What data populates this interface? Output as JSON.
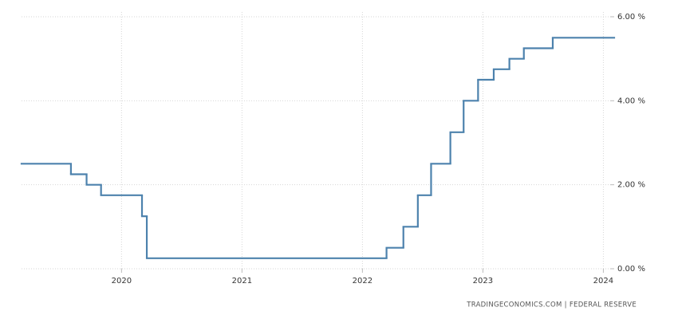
{
  "chart_data": {
    "type": "line",
    "step": "post",
    "x": [
      2019.17,
      2019.58,
      2019.71,
      2019.83,
      2020.17,
      2020.21,
      2022.2,
      2022.34,
      2022.46,
      2022.57,
      2022.73,
      2022.84,
      2022.96,
      2023.09,
      2023.22,
      2023.34,
      2023.58,
      2024.09
    ],
    "values": [
      2.5,
      2.25,
      2,
      1.75,
      1.25,
      0.25,
      0.5,
      1,
      1.75,
      2.5,
      3.25,
      4,
      4.5,
      4.75,
      5,
      5.25,
      5.5,
      5.5
    ],
    "color": "#4d82ad",
    "xlim": [
      2019.17,
      2024.09
    ],
    "xticks": [
      2020,
      2021,
      2022,
      2023,
      2024
    ],
    "ylim": [
      0,
      6
    ],
    "yticks": [
      {
        "value": 0,
        "label": "0.00 %"
      },
      {
        "value": 2,
        "label": "2.00 %"
      },
      {
        "value": 4,
        "label": "4.00 %"
      },
      {
        "value": 6,
        "label": "6.00 %"
      }
    ],
    "grid": true,
    "source": "TRADINGECONOMICS.COM  |  FEDERAL RESERVE"
  }
}
